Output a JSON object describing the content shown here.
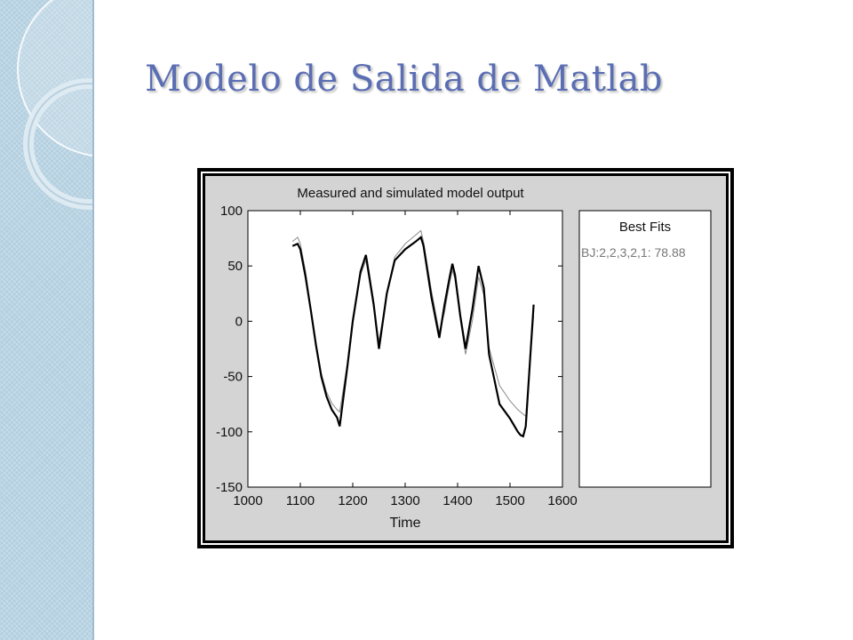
{
  "slide": {
    "title": "Modelo de Salida de Matlab"
  },
  "theme": {
    "title_color": "#5b6eb3",
    "band_color": "#b3cfe0",
    "figure_bg": "#d4d4d4",
    "measured_color": "#000000",
    "simulated_color": "#888888"
  },
  "chart_data": {
    "type": "line",
    "title": "Measured and simulated model output",
    "xlabel": "Time",
    "ylabel": "",
    "xlim": [
      1000,
      1600
    ],
    "ylim": [
      -150,
      100
    ],
    "xticks": [
      1000,
      1100,
      1200,
      1300,
      1400,
      1500,
      1600
    ],
    "yticks": [
      100,
      50,
      0,
      -50,
      -100,
      -150
    ],
    "grid": false,
    "legend_panel": {
      "title": "Best Fits",
      "entries": [
        "BJ:2,2,3,2,1: 78.88"
      ]
    },
    "series": [
      {
        "name": "",
        "role": "measured",
        "x": [
          1085,
          1095,
          1100,
          1110,
          1120,
          1130,
          1140,
          1150,
          1160,
          1170,
          1175,
          1190,
          1200,
          1215,
          1225,
          1240,
          1250,
          1265,
          1280,
          1300,
          1320,
          1330,
          1335,
          1350,
          1365,
          1375,
          1385,
          1390,
          1395,
          1405,
          1415,
          1428,
          1440,
          1450,
          1460,
          1480,
          1500,
          1515,
          1520,
          1525,
          1530,
          1545
        ],
        "y": [
          68,
          70,
          65,
          40,
          10,
          -22,
          -50,
          -68,
          -80,
          -87,
          -95,
          -40,
          0,
          45,
          60,
          15,
          -25,
          25,
          55,
          65,
          72,
          76,
          68,
          22,
          -15,
          15,
          40,
          52,
          42,
          5,
          -25,
          10,
          50,
          30,
          -30,
          -75,
          -88,
          -100,
          -103,
          -104,
          -95,
          15
        ]
      },
      {
        "name": "",
        "role": "simulated",
        "x": [
          1085,
          1095,
          1100,
          1110,
          1120,
          1130,
          1140,
          1150,
          1160,
          1170,
          1175,
          1190,
          1200,
          1215,
          1225,
          1240,
          1250,
          1265,
          1280,
          1300,
          1320,
          1330,
          1335,
          1350,
          1365,
          1375,
          1385,
          1390,
          1395,
          1405,
          1415,
          1428,
          1440,
          1450,
          1460,
          1480,
          1500,
          1515,
          1520,
          1525,
          1530,
          1545
        ],
        "y": [
          72,
          76,
          70,
          45,
          12,
          -20,
          -47,
          -64,
          -74,
          -80,
          -82,
          -37,
          3,
          42,
          55,
          12,
          -18,
          23,
          58,
          70,
          78,
          82,
          72,
          28,
          -10,
          8,
          35,
          46,
          38,
          2,
          -30,
          0,
          40,
          24,
          -24,
          -58,
          -72,
          -80,
          -82,
          -84,
          -86,
          5
        ]
      }
    ]
  }
}
